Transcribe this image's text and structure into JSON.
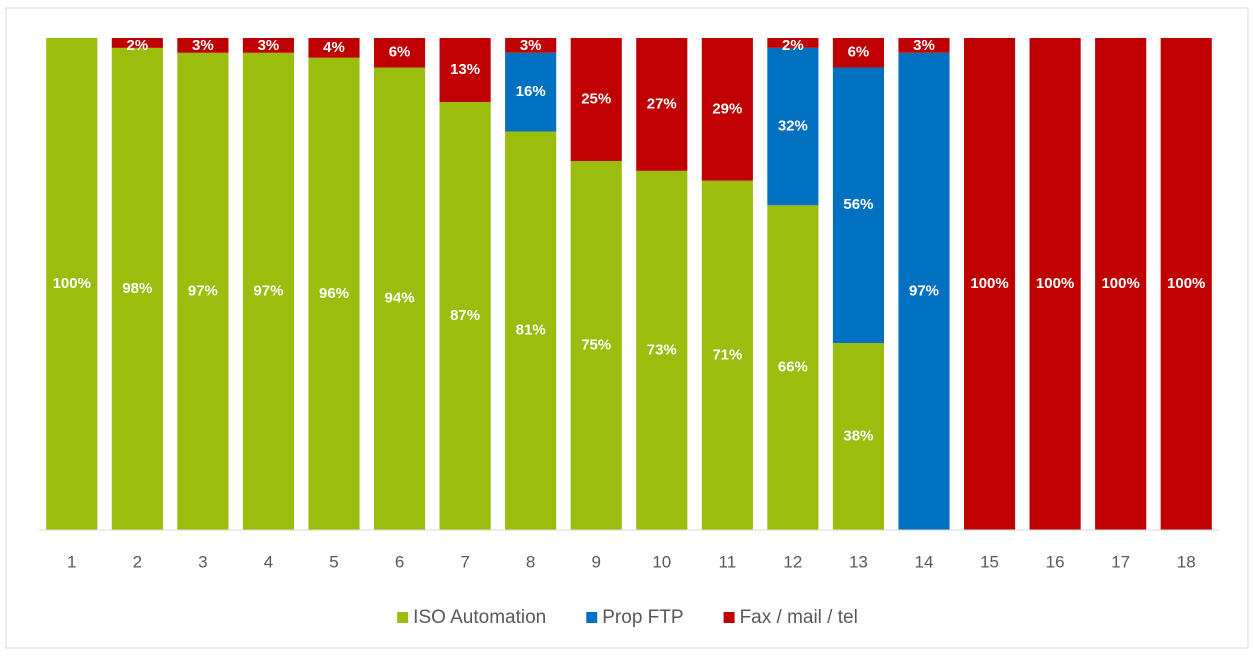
{
  "chart_data": {
    "type": "stacked_bar",
    "categories": [
      "1",
      "2",
      "3",
      "4",
      "5",
      "6",
      "7",
      "8",
      "9",
      "10",
      "11",
      "12",
      "13",
      "14",
      "15",
      "16",
      "17",
      "18"
    ],
    "ylim": [
      0,
      100
    ],
    "series": [
      {
        "name": "ISO Automation",
        "color": "#9bbd0d",
        "values": [
          100,
          98,
          97,
          97,
          96,
          94,
          87,
          81,
          75,
          73,
          71,
          66,
          38,
          0,
          0,
          0,
          0,
          0
        ],
        "value_labels": [
          "100%",
          "98%",
          "97%",
          "97%",
          "96%",
          "94%",
          "87%",
          "81%",
          "75%",
          "73%",
          "71%",
          "66%",
          "38%",
          null,
          null,
          null,
          null,
          null
        ]
      },
      {
        "name": "Prop FTP",
        "color": "#0070c0",
        "values": [
          0,
          0,
          0,
          0,
          0,
          0,
          0,
          16,
          0,
          0,
          0,
          32,
          56,
          97,
          0,
          0,
          0,
          0
        ],
        "value_labels": [
          null,
          null,
          null,
          null,
          null,
          null,
          null,
          "16%",
          null,
          null,
          null,
          "32%",
          "56%",
          "97%",
          null,
          null,
          null,
          null
        ]
      },
      {
        "name": "Fax / mail / tel",
        "color": "#c00000",
        "values": [
          0,
          2,
          3,
          3,
          4,
          6,
          13,
          3,
          25,
          27,
          29,
          2,
          6,
          3,
          100,
          100,
          100,
          100
        ],
        "value_labels": [
          null,
          "2%",
          "3%",
          "3%",
          "4%",
          "6%",
          "13%",
          "3%",
          "25%",
          "27%",
          "29%",
          "2%",
          "6%",
          "3%",
          "100%",
          "100%",
          "100%",
          "100%"
        ]
      }
    ]
  }
}
